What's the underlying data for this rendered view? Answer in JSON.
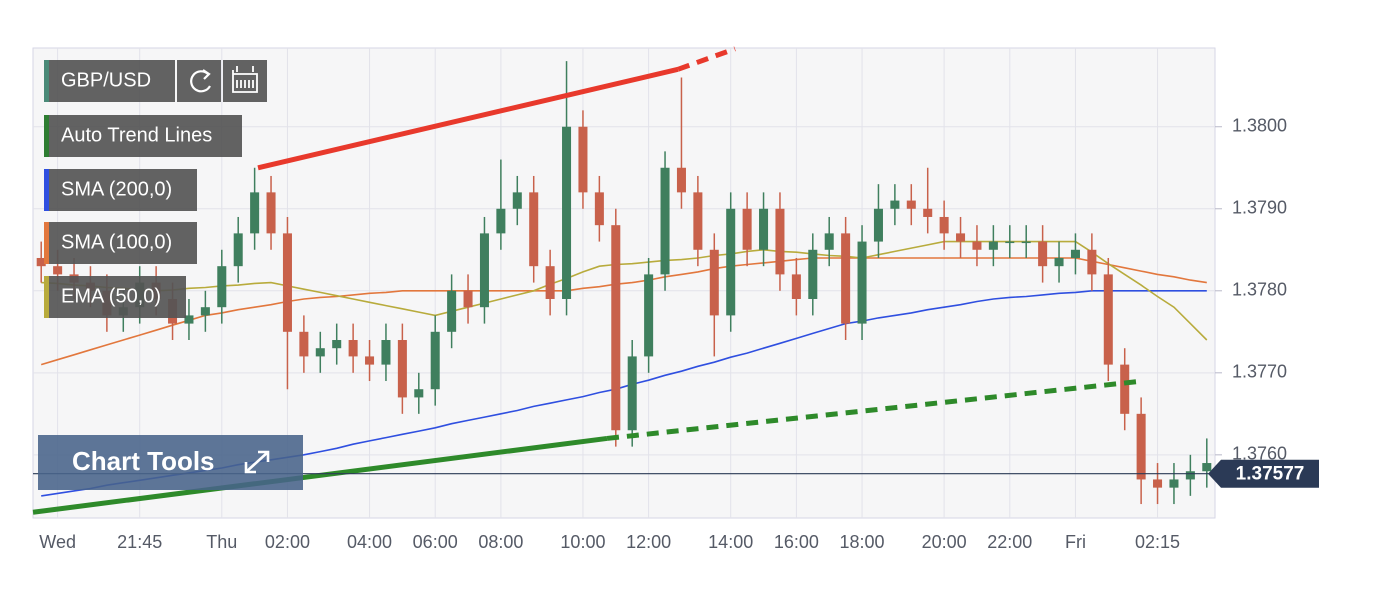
{
  "chart_data": {
    "type": "candlestick",
    "title": "GBP/USD",
    "symbol_color": "#4a8a78",
    "up_color": "#3f7f5e",
    "down_color": "#c8614b",
    "categories": [
      null,
      "Wed",
      null,
      null,
      null,
      null,
      "21:45",
      null,
      null,
      null,
      null,
      "Thu",
      null,
      null,
      null,
      "02:00",
      null,
      null,
      null,
      null,
      "04:00",
      null,
      null,
      null,
      "06:00",
      null,
      null,
      null,
      "08:00",
      null,
      null,
      null,
      null,
      "10:00",
      null,
      null,
      null,
      "12:00",
      null,
      null,
      null,
      null,
      "14:00",
      null,
      null,
      null,
      "16:00",
      null,
      null,
      null,
      "18:00",
      null,
      null,
      null,
      null,
      "20:00",
      null,
      null,
      null,
      "22:00",
      null,
      null,
      null,
      "Fri",
      null,
      null,
      null,
      null,
      "02:15",
      null,
      null,
      null
    ],
    "candles": {
      "open": [
        1.3784,
        1.3783,
        1.3782,
        1.3781,
        1.378,
        1.3777,
        1.3778,
        1.3781,
        1.3779,
        1.3776,
        1.3777,
        1.3778,
        1.3783,
        1.3787,
        1.3792,
        1.3787,
        1.3775,
        1.3772,
        1.3773,
        1.3774,
        1.3772,
        1.3771,
        1.3774,
        1.3767,
        1.3768,
        1.3775,
        1.378,
        1.3778,
        1.3787,
        1.379,
        1.3792,
        1.3783,
        1.3779,
        1.38,
        1.3792,
        1.3788,
        1.3763,
        1.3772,
        1.3782,
        1.3795,
        1.3792,
        1.3785,
        1.3777,
        1.379,
        1.3785,
        1.379,
        1.3782,
        1.3779,
        1.3785,
        1.3787,
        1.3776,
        1.3786,
        1.379,
        1.3791,
        1.379,
        1.3789,
        1.3787,
        1.3786,
        1.3785,
        1.3786,
        1.3786,
        1.3786,
        1.3783,
        1.3784,
        1.3785,
        1.3782,
        1.3771,
        1.3765,
        1.3757,
        1.3756,
        1.3757,
        1.3758
      ],
      "high": [
        1.3786,
        1.3785,
        1.3784,
        1.3783,
        1.3782,
        1.378,
        1.3783,
        1.3783,
        1.3781,
        1.3779,
        1.378,
        1.3785,
        1.3789,
        1.3795,
        1.3794,
        1.3789,
        1.3777,
        1.3775,
        1.3776,
        1.3776,
        1.3774,
        1.3776,
        1.3776,
        1.377,
        1.3777,
        1.3782,
        1.3782,
        1.3789,
        1.3796,
        1.3794,
        1.3794,
        1.3785,
        1.3808,
        1.3802,
        1.3794,
        1.379,
        1.3774,
        1.3784,
        1.3797,
        1.3806,
        1.3794,
        1.3787,
        1.3792,
        1.3792,
        1.3792,
        1.3792,
        1.3784,
        1.3787,
        1.3789,
        1.3789,
        1.3788,
        1.3793,
        1.3793,
        1.3793,
        1.3795,
        1.3791,
        1.3789,
        1.3788,
        1.3788,
        1.3788,
        1.3788,
        1.3788,
        1.3786,
        1.3787,
        1.3787,
        1.3784,
        1.3773,
        1.3767,
        1.3759,
        1.3759,
        1.376,
        1.3762
      ],
      "low": [
        1.3781,
        1.378,
        1.3779,
        1.3778,
        1.3775,
        1.3775,
        1.3776,
        1.3777,
        1.3774,
        1.3774,
        1.3775,
        1.3776,
        1.3781,
        1.3785,
        1.3785,
        1.3768,
        1.377,
        1.377,
        1.3771,
        1.377,
        1.3769,
        1.3769,
        1.3765,
        1.3765,
        1.3766,
        1.3773,
        1.3776,
        1.3776,
        1.3785,
        1.3788,
        1.3781,
        1.3777,
        1.3777,
        1.379,
        1.3786,
        1.3761,
        1.3761,
        1.377,
        1.378,
        1.379,
        1.3783,
        1.3772,
        1.3775,
        1.3783,
        1.3783,
        1.378,
        1.3777,
        1.3777,
        1.3783,
        1.3774,
        1.3774,
        1.3784,
        1.3788,
        1.3788,
        1.3787,
        1.3785,
        1.3784,
        1.3783,
        1.3783,
        1.3784,
        1.3784,
        1.3781,
        1.3781,
        1.3782,
        1.378,
        1.3769,
        1.3763,
        1.3754,
        1.3754,
        1.3754,
        1.3755,
        1.3756
      ],
      "close": [
        1.3783,
        1.3782,
        1.3781,
        1.378,
        1.3777,
        1.3778,
        1.3781,
        1.3779,
        1.3776,
        1.3777,
        1.3778,
        1.3783,
        1.3787,
        1.3792,
        1.3787,
        1.3775,
        1.3772,
        1.3773,
        1.3774,
        1.3772,
        1.3771,
        1.3774,
        1.3767,
        1.3768,
        1.3775,
        1.378,
        1.3778,
        1.3787,
        1.379,
        1.3792,
        1.3783,
        1.3779,
        1.38,
        1.3792,
        1.3788,
        1.3763,
        1.3772,
        1.3782,
        1.3795,
        1.3792,
        1.3785,
        1.3777,
        1.379,
        1.3785,
        1.379,
        1.3782,
        1.3779,
        1.3785,
        1.3787,
        1.3776,
        1.3786,
        1.379,
        1.3791,
        1.379,
        1.3789,
        1.3787,
        1.3786,
        1.3785,
        1.3786,
        1.3786,
        1.3786,
        1.3783,
        1.3784,
        1.3785,
        1.3782,
        1.3771,
        1.3765,
        1.3757,
        1.3756,
        1.3757,
        1.3758,
        1.3759
      ]
    },
    "series": [
      {
        "name": "SMA (200,0)",
        "color": "#2f4fe0",
        "values": [
          1.3755,
          1.37553,
          1.37556,
          1.37559,
          1.37563,
          1.37566,
          1.37569,
          1.37572,
          1.37575,
          1.37578,
          1.37581,
          1.37584,
          1.37588,
          1.37591,
          1.37594,
          1.37597,
          1.376,
          1.37604,
          1.37608,
          1.37613,
          1.37617,
          1.37621,
          1.37625,
          1.37629,
          1.37633,
          1.37638,
          1.37642,
          1.37646,
          1.3765,
          1.37654,
          1.37659,
          1.37663,
          1.37667,
          1.37671,
          1.37676,
          1.3768,
          1.37686,
          1.37691,
          1.37697,
          1.37702,
          1.37708,
          1.37713,
          1.37719,
          1.37724,
          1.3773,
          1.37736,
          1.37742,
          1.37748,
          1.37754,
          1.3776,
          1.37763,
          1.37767,
          1.3777,
          1.37773,
          1.37777,
          1.3778,
          1.37783,
          1.37787,
          1.3779,
          1.37792,
          1.37793,
          1.37795,
          1.37797,
          1.37798,
          1.378,
          1.378,
          1.378,
          1.378,
          1.378,
          1.378,
          1.378,
          1.378
        ]
      },
      {
        "name": "SMA (100,0)",
        "color": "#e2773d",
        "values": [
          1.3771,
          1.37716,
          1.37722,
          1.37728,
          1.37734,
          1.3774,
          1.37746,
          1.37752,
          1.37758,
          1.37764,
          1.3777,
          1.37773,
          1.37777,
          1.3778,
          1.37783,
          1.37787,
          1.3779,
          1.37792,
          1.37793,
          1.37795,
          1.37797,
          1.37798,
          1.378,
          1.378,
          1.378,
          1.378,
          1.378,
          1.378,
          1.378,
          1.378,
          1.378,
          1.378,
          1.378,
          1.37803,
          1.37805,
          1.37808,
          1.3781,
          1.37813,
          1.37817,
          1.3782,
          1.37823,
          1.37827,
          1.3783,
          1.37832,
          1.37834,
          1.37836,
          1.37838,
          1.3784,
          1.3784,
          1.3784,
          1.3784,
          1.3784,
          1.3784,
          1.3784,
          1.3784,
          1.3784,
          1.3784,
          1.3784,
          1.3784,
          1.3784,
          1.3784,
          1.3784,
          1.3784,
          1.3784,
          1.37836,
          1.37832,
          1.37828,
          1.37824,
          1.3782,
          1.37817,
          1.37813,
          1.3781
        ]
      },
      {
        "name": "EMA (50,0)",
        "color": "#b8ab3c",
        "values": [
          1.3781,
          1.37809,
          1.37807,
          1.37806,
          1.37804,
          1.37803,
          1.37801,
          1.378,
          1.37801,
          1.37803,
          1.37804,
          1.37806,
          1.37807,
          1.37809,
          1.3781,
          1.37806,
          1.37802,
          1.37798,
          1.37794,
          1.3779,
          1.37786,
          1.37782,
          1.37778,
          1.37774,
          1.3777,
          1.37775,
          1.3778,
          1.37785,
          1.3779,
          1.37795,
          1.378,
          1.37808,
          1.37815,
          1.37823,
          1.3783,
          1.37832,
          1.37833,
          1.37835,
          1.37837,
          1.37838,
          1.3784,
          1.37843,
          1.37845,
          1.37848,
          1.3785,
          1.37848,
          1.37847,
          1.37845,
          1.37843,
          1.37842,
          1.3784,
          1.37844,
          1.37848,
          1.37852,
          1.37856,
          1.3786,
          1.3786,
          1.3786,
          1.3786,
          1.3786,
          1.3786,
          1.3786,
          1.3786,
          1.3786,
          1.37847,
          1.37833,
          1.3782,
          1.37807,
          1.37793,
          1.3778,
          1.3776,
          1.3774
        ]
      }
    ],
    "trend_lines": {
      "name": "Auto Trend Lines",
      "color": "#2e7d32",
      "lines": [
        {
          "color": "#e8392c",
          "values": [
            1.3795,
            1.3807,
            1.38095
          ]
        },
        {
          "color": "#2e8a2a",
          "values": [
            1.3753,
            1.3762,
            1.3769
          ]
        }
      ]
    },
    "last_price": 1.37577,
    "last_price_color": "#2b3a56",
    "ylim": [
      1.37523,
      1.38096
    ],
    "yticks": [
      {
        "value": 1.376,
        "label": "1.3760"
      },
      {
        "value": 1.377,
        "label": "1.3770"
      },
      {
        "value": 1.378,
        "label": "1.3780"
      },
      {
        "value": 1.379,
        "label": "1.3790"
      },
      {
        "value": 1.38,
        "label": "1.3800"
      }
    ],
    "grid": true,
    "overlay_button": "Chart Tools"
  }
}
